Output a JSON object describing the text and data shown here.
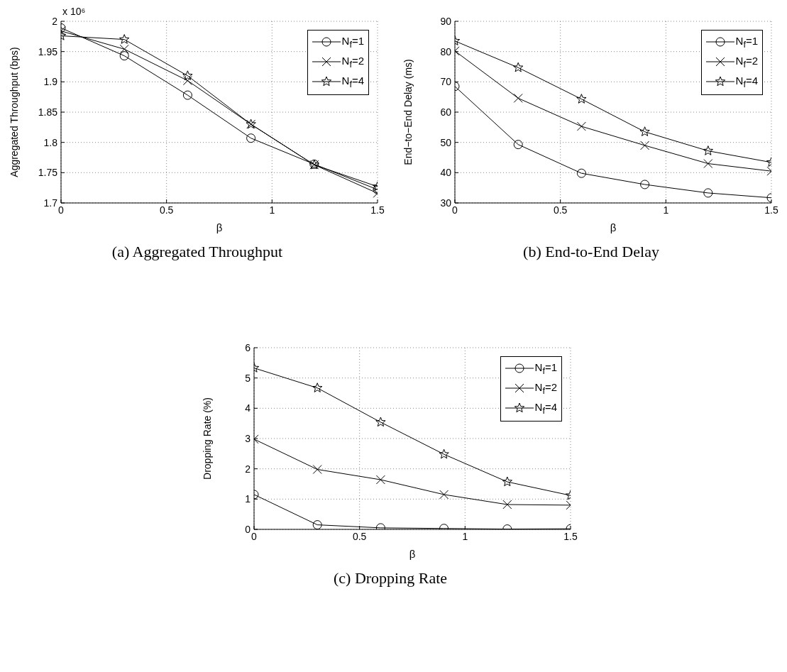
{
  "chart_data": [
    {
      "type": "line",
      "title": "(a) Aggregated Throughput",
      "xlabel": "β",
      "ylabel": "Aggregated Throughput (bps)",
      "annotations": [
        "x 10⁶"
      ],
      "x": [
        0,
        0.3,
        0.6,
        0.9,
        1.2,
        1.5
      ],
      "xlim": [
        0,
        1.5
      ],
      "xticks": [
        0,
        0.5,
        1,
        1.5
      ],
      "ylim": [
        1.7,
        2
      ],
      "yticks": [
        1.7,
        1.75,
        1.8,
        1.85,
        1.9,
        1.95,
        2
      ],
      "grid": true,
      "legend": "top right",
      "line_style": "solid",
      "series": [
        {
          "name": "N$_{f}$=1",
          "color": "#000000",
          "marker": "circle",
          "values": [
            1.989,
            1.943,
            1.878,
            1.807,
            1.764,
            1.722
          ]
        },
        {
          "name": "N$_{f}$=2",
          "color": "#000000",
          "marker": "cross",
          "values": [
            1.984,
            1.954,
            1.902,
            1.83,
            1.763,
            1.716
          ]
        },
        {
          "name": "N$_{f}$=4",
          "color": "#000000",
          "marker": "star",
          "values": [
            1.976,
            1.97,
            1.91,
            1.83,
            1.763,
            1.727
          ]
        }
      ]
    },
    {
      "type": "line",
      "title": "(b) End-to-End Delay",
      "xlabel": "β",
      "ylabel": "End−to−End Delay (ms)",
      "x": [
        0,
        0.3,
        0.6,
        0.9,
        1.2,
        1.5
      ],
      "xlim": [
        0,
        1.5
      ],
      "xticks": [
        0,
        0.5,
        1,
        1.5
      ],
      "ylim": [
        30,
        90
      ],
      "yticks": [
        30,
        40,
        50,
        60,
        70,
        80,
        90
      ],
      "grid": true,
      "legend": "top right",
      "line_style": "solid",
      "series": [
        {
          "name": "N$_{f}$=1",
          "color": "#000000",
          "marker": "circle",
          "values": [
            68.5,
            49.3,
            39.8,
            36.1,
            33.3,
            31.7
          ]
        },
        {
          "name": "N$_{f}$=2",
          "color": "#000000",
          "marker": "cross",
          "values": [
            80.2,
            64.6,
            55.3,
            49.0,
            43.0,
            40.5
          ]
        },
        {
          "name": "N$_{f}$=4",
          "color": "#000000",
          "marker": "star",
          "values": [
            83.5,
            74.7,
            64.3,
            53.5,
            47.2,
            43.4
          ]
        }
      ]
    },
    {
      "type": "line",
      "title": "(c) Dropping Rate",
      "xlabel": "β",
      "ylabel": "Dropping Rate (%)",
      "x": [
        0,
        0.3,
        0.6,
        0.9,
        1.2,
        1.5
      ],
      "xlim": [
        0,
        1.5
      ],
      "xticks": [
        0,
        0.5,
        1,
        1.5
      ],
      "ylim": [
        0,
        6
      ],
      "yticks": [
        0,
        1,
        2,
        3,
        4,
        5,
        6
      ],
      "grid": true,
      "legend": "top right",
      "line_style": "solid",
      "series": [
        {
          "name": "N$_{f}$=1",
          "color": "#000000",
          "marker": "circle",
          "values": [
            1.15,
            0.15,
            0.05,
            0.03,
            0.01,
            0.02
          ]
        },
        {
          "name": "N$_{f}$=2",
          "color": "#000000",
          "marker": "cross",
          "values": [
            2.98,
            1.98,
            1.64,
            1.15,
            0.82,
            0.8
          ]
        },
        {
          "name": "N$_{f}$=4",
          "color": "#000000",
          "marker": "star",
          "values": [
            5.33,
            4.67,
            3.54,
            2.48,
            1.57,
            1.12
          ]
        }
      ]
    }
  ]
}
